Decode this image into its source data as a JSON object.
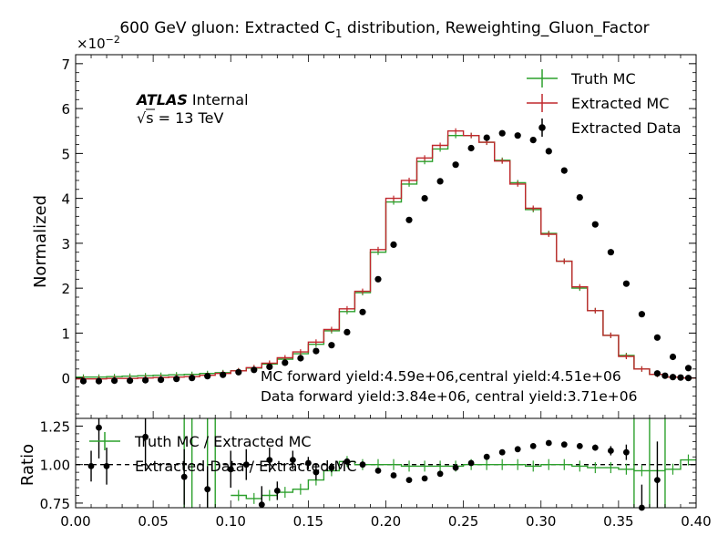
{
  "chart_data": [
    {
      "type": "line",
      "panel": "main",
      "title": "600 GeV gluon: Extracted C",
      "title_subscript": "1",
      "title_suffix": " distribution, Reweighting_Gluon_Factor",
      "ylabel": "Normalized",
      "y_multiplier": "×10",
      "y_multiplier_exp": "−2",
      "xlim": [
        0.0,
        0.4
      ],
      "ylim": [
        -0.9,
        7.2
      ],
      "yticks": [
        0,
        1,
        2,
        3,
        4,
        5,
        6,
        7
      ],
      "ytick_labels": [
        "0",
        "1",
        "2",
        "3",
        "4",
        "5",
        "6",
        "7"
      ],
      "grid": false,
      "legend_position": "top-right",
      "bin_edges": [
        0.0,
        0.01,
        0.02,
        0.03,
        0.04,
        0.05,
        0.06,
        0.07,
        0.08,
        0.09,
        0.1,
        0.11,
        0.12,
        0.13,
        0.14,
        0.15,
        0.16,
        0.17,
        0.18,
        0.19,
        0.2,
        0.21,
        0.22,
        0.23,
        0.24,
        0.25,
        0.26,
        0.27,
        0.28,
        0.29,
        0.3,
        0.31,
        0.32,
        0.33,
        0.34,
        0.35,
        0.36,
        0.37,
        0.38,
        0.39,
        0.4
      ],
      "series": [
        {
          "name": "Truth MC",
          "color": "#2ca02c",
          "style": "step",
          "values": [
            0.02,
            0.02,
            0.03,
            0.04,
            0.05,
            0.06,
            0.07,
            0.08,
            0.1,
            0.12,
            0.16,
            0.22,
            0.31,
            0.42,
            0.54,
            0.75,
            1.05,
            1.48,
            1.9,
            2.8,
            3.92,
            4.32,
            4.82,
            5.1,
            5.4,
            5.4,
            5.25,
            4.85,
            4.35,
            3.75,
            3.22,
            2.6,
            2.0,
            1.5,
            0.95,
            0.5,
            0.2,
            0.08,
            0.02,
            0.0
          ]
        },
        {
          "name": "Extracted MC",
          "color": "#c0282d",
          "style": "step",
          "values": [
            -0.02,
            -0.02,
            -0.01,
            -0.01,
            0.0,
            0.01,
            0.02,
            0.03,
            0.06,
            0.1,
            0.16,
            0.23,
            0.33,
            0.45,
            0.58,
            0.8,
            1.08,
            1.54,
            1.93,
            2.86,
            4.0,
            4.4,
            4.9,
            5.18,
            5.5,
            5.4,
            5.25,
            4.83,
            4.32,
            3.78,
            3.2,
            2.6,
            2.03,
            1.5,
            0.95,
            0.48,
            0.2,
            0.08,
            0.02,
            0.0
          ]
        },
        {
          "name": "Extracted Data",
          "color": "#000000",
          "style": "points",
          "values": [
            -0.07,
            -0.07,
            -0.06,
            -0.06,
            -0.05,
            -0.04,
            -0.02,
            0.0,
            0.04,
            0.07,
            0.13,
            0.18,
            0.25,
            0.34,
            0.44,
            0.6,
            0.73,
            1.02,
            1.47,
            2.2,
            2.97,
            3.52,
            4.0,
            4.38,
            4.75,
            5.12,
            5.35,
            5.45,
            5.4,
            5.3,
            5.05,
            4.62,
            4.02,
            3.42,
            2.8,
            2.1,
            1.42,
            0.9,
            0.47,
            0.22,
            0.1,
            0.05,
            0.02,
            0.01,
            0.0,
            0.0
          ],
          "x": [
            0.005,
            0.015,
            0.025,
            0.035,
            0.045,
            0.055,
            0.065,
            0.075,
            0.085,
            0.095,
            0.105,
            0.115,
            0.125,
            0.135,
            0.145,
            0.155,
            0.165,
            0.175,
            0.185,
            0.195,
            0.205,
            0.215,
            0.225,
            0.235,
            0.245,
            0.255,
            0.265,
            0.275,
            0.285,
            0.295,
            0.305,
            0.315,
            0.325,
            0.335,
            0.345,
            0.355,
            0.365,
            0.375,
            0.385,
            0.395,
            0.4,
            0.4,
            0.4,
            0.4,
            0.4,
            0.4
          ]
        }
      ],
      "annotations": {
        "atlas": "ATLAS",
        "atlas_status": "Internal",
        "energy": "√s = 13 TeV",
        "mc_yield": "MC forward yield:4.59e+06,central yield:4.51e+06",
        "data_yield": "Data forward yield:3.84e+06, central yield:3.71e+06"
      }
    },
    {
      "type": "line",
      "panel": "ratio",
      "ylabel": "Ratio",
      "xlim": [
        0.0,
        0.4
      ],
      "ylim": [
        0.72,
        1.3
      ],
      "yticks": [
        0.75,
        1.0,
        1.25
      ],
      "ytick_labels": [
        "0.75",
        "1.00",
        "1.25"
      ],
      "xticks": [
        0.0,
        0.05,
        0.1,
        0.15,
        0.2,
        0.25,
        0.3,
        0.35,
        0.4
      ],
      "xtick_labels": [
        "0.00",
        "0.05",
        "0.10",
        "0.15",
        "0.20",
        "0.25",
        "0.30",
        "0.35",
        "0.40"
      ],
      "reference_line": 1.0,
      "legend_position": "top-left",
      "series": [
        {
          "name": "Truth MC / Extracted MC",
          "color": "#2ca02c",
          "style": "step",
          "values": [
            null,
            null,
            null,
            null,
            null,
            null,
            null,
            null,
            null,
            null,
            0.8,
            0.78,
            0.8,
            0.82,
            0.84,
            0.9,
            0.96,
            1.02,
            1.0,
            1.0,
            1.0,
            0.99,
            0.99,
            0.99,
            0.99,
            1.0,
            1.0,
            1.0,
            1.0,
            0.99,
            1.0,
            1.0,
            0.99,
            0.98,
            0.98,
            0.97,
            0.96,
            0.96,
            0.97,
            1.03
          ]
        },
        {
          "name": "Extracted Data / Extracted MC",
          "color": "#000000",
          "style": "points",
          "x": [
            0.01,
            0.015,
            0.02,
            0.045,
            0.07,
            0.085,
            0.1,
            0.11,
            0.12,
            0.125,
            0.13,
            0.14,
            0.15,
            0.155,
            0.165,
            0.175,
            0.185,
            0.195,
            0.205,
            0.215,
            0.225,
            0.235,
            0.245,
            0.255,
            0.265,
            0.275,
            0.285,
            0.295,
            0.305,
            0.315,
            0.325,
            0.335,
            0.345,
            0.355,
            0.365,
            0.375
          ],
          "values": [
            0.99,
            1.24,
            0.99,
            1.18,
            0.92,
            0.84,
            0.97,
            1.0,
            0.74,
            1.03,
            0.83,
            1.03,
            1.01,
            0.95,
            0.98,
            1.02,
            1.0,
            0.96,
            0.93,
            0.9,
            0.91,
            0.94,
            0.98,
            1.01,
            1.05,
            1.08,
            1.1,
            1.12,
            1.14,
            1.13,
            1.12,
            1.11,
            1.09,
            1.08,
            0.72,
            0.9
          ],
          "yerr": [
            0.1,
            0.2,
            0.12,
            0.22,
            0.18,
            0.15,
            0.12,
            0.1,
            0.12,
            0.08,
            0.06,
            0.06,
            0.04,
            0.05,
            0.03,
            0.02,
            0.02,
            0.01,
            0.01,
            0.01,
            0.01,
            0.01,
            0.01,
            0.01,
            0.01,
            0.01,
            0.01,
            0.01,
            0.01,
            0.01,
            0.01,
            0.02,
            0.03,
            0.05,
            0.15,
            0.25
          ]
        }
      ]
    }
  ]
}
